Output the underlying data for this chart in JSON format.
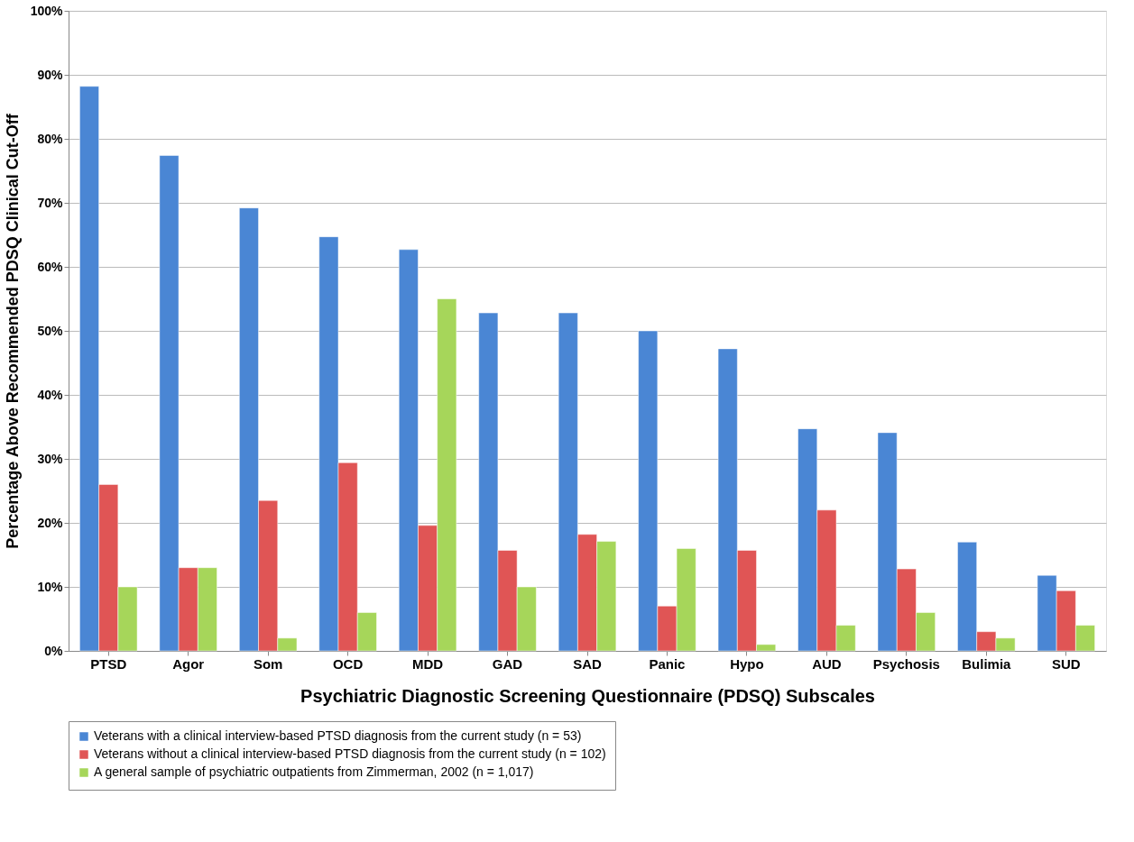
{
  "chart_data": {
    "type": "bar",
    "xlabel": "Psychiatric Diagnostic Screening Questionnaire (PDSQ) Subscales",
    "ylabel": "Percentage Above Recommended PDSQ Clinical Cut-Off",
    "categories": [
      "PTSD",
      "Agor",
      "Som",
      "OCD",
      "MDD",
      "GAD",
      "SAD",
      "Panic",
      "Hypo",
      "AUD",
      "Psychosis",
      "Bulimia",
      "SUD"
    ],
    "series": [
      {
        "name": "Veterans with a clinical interview-based PTSD diagnosis from the current study (n = 53)",
        "color": "#4a86d4",
        "values": [
          88.2,
          77.4,
          69.2,
          64.7,
          62.7,
          52.8,
          52.8,
          50,
          47.2,
          34.7,
          34.1,
          17,
          11.8
        ]
      },
      {
        "name": "Veterans without a clinical interview-based PTSD diagnosis from the current study (n = 102)",
        "color": "#e05555",
        "values": [
          26,
          13,
          23.5,
          29.4,
          19.6,
          15.7,
          18.2,
          7,
          15.7,
          22,
          12.8,
          3,
          9.4
        ]
      },
      {
        "name": "A general sample of psychiatric outpatients from Zimmerman, 2002 (n = 1,017)",
        "color": "#a6d65a",
        "values": [
          10,
          13,
          2,
          6,
          55,
          10,
          17.1,
          16,
          1,
          4,
          6,
          2,
          4
        ]
      }
    ],
    "ylim": [
      0,
      100
    ],
    "yticks": [
      {
        "value": 0,
        "label": "0%"
      },
      {
        "value": 10,
        "label": "10%"
      },
      {
        "value": 20,
        "label": "20%"
      },
      {
        "value": 30,
        "label": "30%"
      },
      {
        "value": 40,
        "label": "40%"
      },
      {
        "value": 50,
        "label": "50%"
      },
      {
        "value": 60,
        "label": "60%"
      },
      {
        "value": 70,
        "label": "70%"
      },
      {
        "value": 80,
        "label": "80%"
      },
      {
        "value": 90,
        "label": "90%"
      },
      {
        "value": 100,
        "label": "100%"
      }
    ],
    "grid": "y",
    "legend": "bottom"
  }
}
